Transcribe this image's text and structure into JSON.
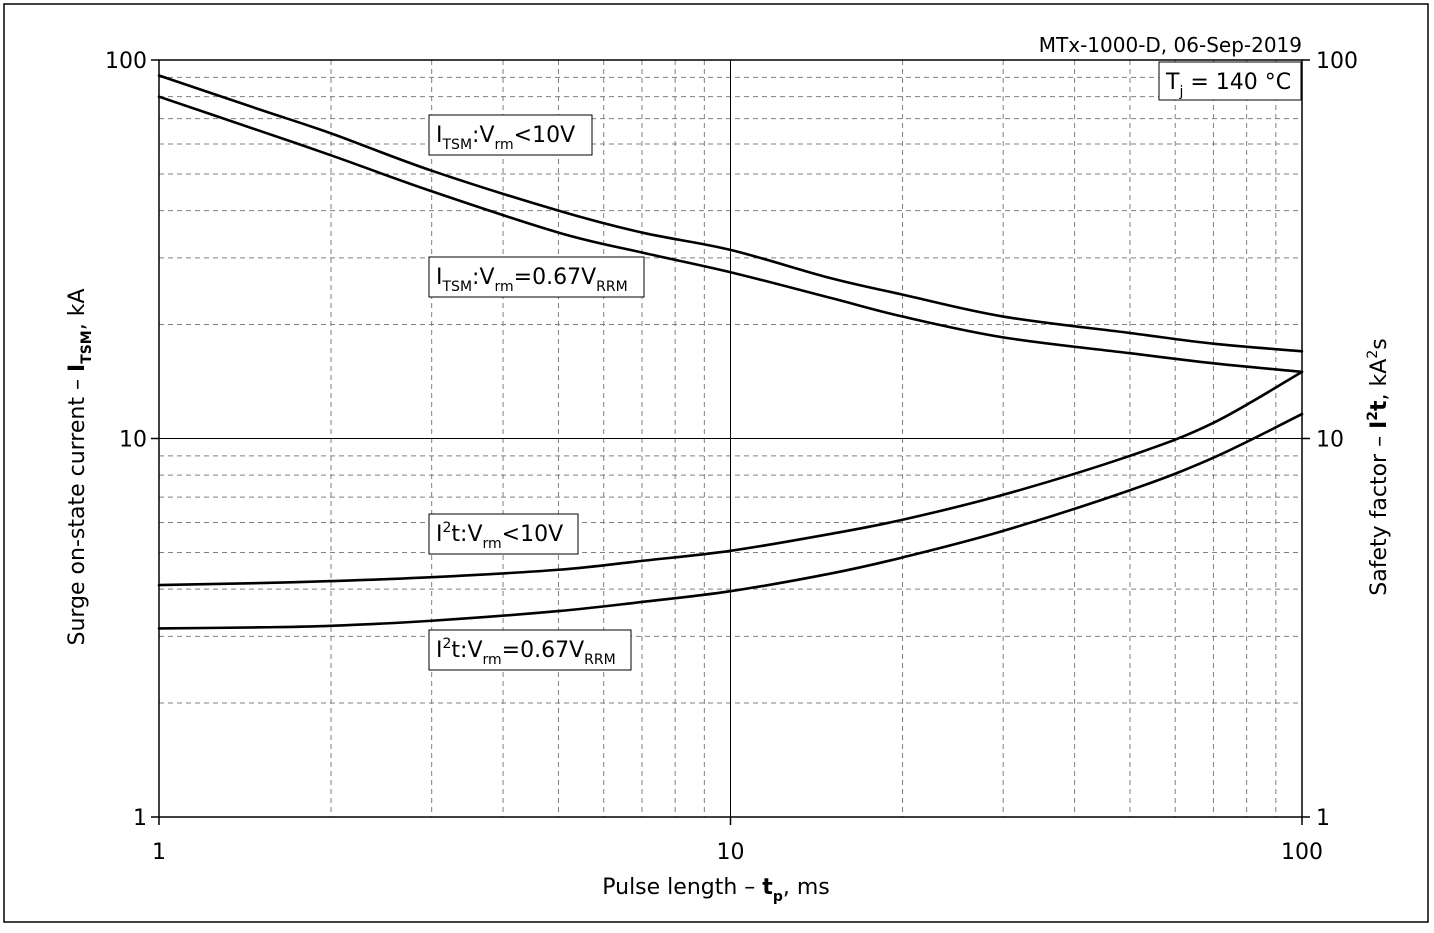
{
  "chart_data": {
    "type": "line",
    "annotation_top_right": "MTx-1000-D, 06-Sep-2019",
    "condition_box": {
      "main": "T",
      "sub": "j",
      "suffix": " = 140 °C"
    },
    "x_axis": {
      "scale": "log",
      "range": [
        1,
        100
      ],
      "ticks": [
        1,
        10,
        100
      ],
      "tick_labels": [
        "1",
        "10",
        "100"
      ],
      "label_parts": [
        {
          "text": "Pulse length – ",
          "style": "normal"
        },
        {
          "text": "t",
          "style": "bold"
        },
        {
          "text": "p",
          "style": "bold-sub"
        },
        {
          "text": ", ms",
          "style": "normal"
        }
      ]
    },
    "y_axis_left": {
      "scale": "log",
      "range": [
        1,
        100
      ],
      "ticks": [
        1,
        10,
        100
      ],
      "tick_labels": [
        "1",
        "10",
        "100"
      ],
      "label_parts": [
        {
          "text": "Surge on-state current – ",
          "style": "normal"
        },
        {
          "text": "I",
          "style": "bold"
        },
        {
          "text": "TSM",
          "style": "bold-sub"
        },
        {
          "text": ", kA",
          "style": "normal"
        }
      ]
    },
    "y_axis_right": {
      "scale": "log",
      "range": [
        1,
        100
      ],
      "ticks": [
        1,
        10,
        100
      ],
      "tick_labels": [
        "1",
        "10",
        "100"
      ],
      "label_parts": [
        {
          "text": "Safety factor – ",
          "style": "normal"
        },
        {
          "text": "I",
          "style": "bold"
        },
        {
          "text": "2",
          "style": "bold-sup"
        },
        {
          "text": "t",
          "style": "bold"
        },
        {
          "text": ", kA",
          "style": "normal"
        },
        {
          "text": "2",
          "style": "sup"
        },
        {
          "text": "s",
          "style": "normal"
        }
      ]
    },
    "grid": {
      "major": true,
      "minor": true,
      "minor_style": "dashed"
    },
    "series": [
      {
        "name": "I_TSM: V_rm < 10V",
        "label_parts": [
          {
            "text": "I",
            "style": "normal"
          },
          {
            "text": "TSM",
            "style": "sub"
          },
          {
            "text": ":V",
            "style": "normal"
          },
          {
            "text": "rm",
            "style": "sub"
          },
          {
            "text": "<10V",
            "style": "normal"
          }
        ],
        "x": [
          1,
          1.5,
          2,
          3,
          5,
          7,
          10,
          15,
          20,
          30,
          50,
          70,
          100
        ],
        "y": [
          91,
          74,
          64,
          51,
          40,
          35,
          31.5,
          26.5,
          24,
          21,
          19,
          17.8,
          17
        ]
      },
      {
        "name": "I_TSM: V_rm = 0.67V_RRM",
        "label_parts": [
          {
            "text": "I",
            "style": "normal"
          },
          {
            "text": "TSM",
            "style": "sub"
          },
          {
            "text": ":V",
            "style": "normal"
          },
          {
            "text": "rm",
            "style": "sub"
          },
          {
            "text": "=0.67V",
            "style": "normal"
          },
          {
            "text": "RRM",
            "style": "sub"
          }
        ],
        "x": [
          1,
          1.5,
          2,
          3,
          5,
          7,
          10,
          15,
          20,
          30,
          50,
          70,
          100
        ],
        "y": [
          80,
          65,
          56,
          45,
          35,
          31,
          27.5,
          23.5,
          21,
          18.5,
          16.8,
          15.8,
          15
        ]
      },
      {
        "name": "I²t: V_rm < 10V",
        "label_parts": [
          {
            "text": "I",
            "style": "normal"
          },
          {
            "text": "2",
            "style": "sup"
          },
          {
            "text": "t:V",
            "style": "normal"
          },
          {
            "text": "rm",
            "style": "sub"
          },
          {
            "text": "<10V",
            "style": "normal"
          }
        ],
        "x": [
          1,
          1.5,
          2,
          3,
          5,
          7,
          10,
          15,
          20,
          30,
          50,
          70,
          100
        ],
        "y": [
          4.1,
          4.15,
          4.2,
          4.3,
          4.5,
          4.75,
          5.05,
          5.6,
          6.1,
          7.1,
          9.0,
          11.0,
          15
        ]
      },
      {
        "name": "I²t: V_rm = 0.67V_RRM",
        "label_parts": [
          {
            "text": "I",
            "style": "normal"
          },
          {
            "text": "2",
            "style": "sup"
          },
          {
            "text": "t:V",
            "style": "normal"
          },
          {
            "text": "rm",
            "style": "sub"
          },
          {
            "text": "=0.67V",
            "style": "normal"
          },
          {
            "text": "RRM",
            "style": "sub"
          }
        ],
        "x": [
          1,
          1.5,
          2,
          3,
          5,
          7,
          10,
          15,
          20,
          30,
          50,
          70,
          100
        ],
        "y": [
          3.15,
          3.17,
          3.2,
          3.3,
          3.5,
          3.7,
          3.95,
          4.4,
          4.85,
          5.7,
          7.3,
          8.9,
          11.6
        ]
      }
    ],
    "colors": {
      "line": "#000000",
      "grid": "#808080",
      "axis": "#000000"
    }
  }
}
